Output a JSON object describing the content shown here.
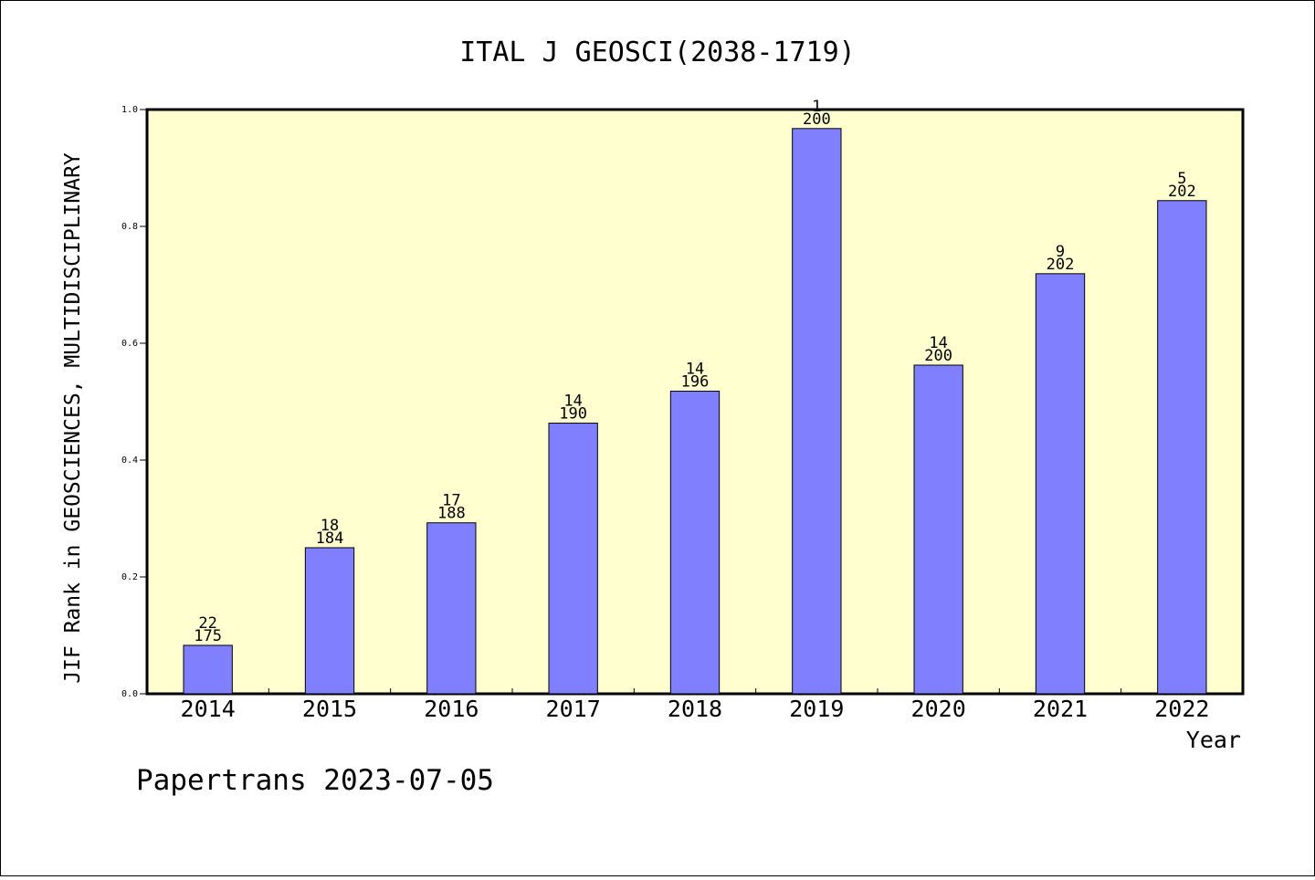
{
  "chart_data": {
    "type": "bar",
    "title": "ITAL J GEOSCI(2038-1719)",
    "xlabel": "Year",
    "ylabel": "JIF Rank in GEOSCIENCES, MULTIDISCIPLINARY",
    "ylim": [
      0,
      1.0
    ],
    "yticks": [
      "0.0",
      "0.2",
      "0.4",
      "0.6",
      "0.8",
      "1.0"
    ],
    "grid": false,
    "categories": [
      "2014",
      "2015",
      "2016",
      "2017",
      "2018",
      "2019",
      "2020",
      "2021",
      "2022"
    ],
    "values": [
      0.0829,
      0.25,
      0.2926,
      0.4632,
      0.5179,
      0.9675,
      0.5625,
      0.719,
      0.8441
    ],
    "rank_labels": [
      "22",
      "18",
      "17",
      "14",
      "14",
      "1",
      "14",
      "9",
      "5"
    ],
    "total_labels": [
      "175",
      "184",
      "188",
      "190",
      "196",
      "200",
      "200",
      "202",
      "202"
    ],
    "colors": {
      "plot_background": "#ffffd0",
      "bar_fill": "#8080ff",
      "bar_stroke": "#000000"
    }
  },
  "footer": "Papertrans 2023-07-05"
}
